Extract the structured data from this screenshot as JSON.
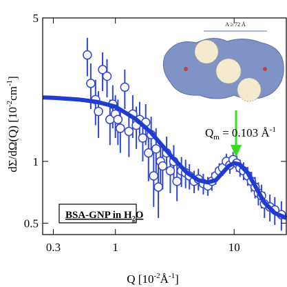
{
  "chart_data": {
    "type": "scatter",
    "xscale": "log",
    "yscale": "log",
    "xlim": [
      0.244,
      27.5
    ],
    "ylim": [
      0.44,
      5
    ],
    "xticks": [
      0.3,
      1,
      10
    ],
    "yticks": [
      5,
      1,
      0.5
    ],
    "xlabel": [
      "Q [10",
      "-2",
      "Å",
      "-1",
      "]"
    ],
    "ylabel": [
      "dΣ/dΩ(Q) [10",
      "-2",
      "cm",
      "-1",
      "]"
    ],
    "annotation": [
      "Q",
      "m",
      " = 0.103 Å",
      "-1"
    ],
    "sample_label": [
      "BSA-GNP in  H",
      "2",
      "O"
    ],
    "inset_label": "A ≥ 72 Å",
    "series": [
      {
        "type": "scatter",
        "color": "#2f45d6",
        "x": [
          0.58,
          0.62,
          0.68,
          0.72,
          0.78,
          0.85,
          0.9,
          0.95,
          1.0,
          1.05,
          1.1,
          1.2,
          1.3,
          1.4,
          1.5,
          1.6,
          1.7,
          1.8,
          1.9,
          2.0,
          2.1,
          2.2,
          2.3,
          2.4,
          2.5,
          2.7,
          2.9,
          3.1,
          3.3,
          3.6,
          3.9,
          4.2,
          4.6,
          5.0,
          5.5,
          6.0,
          6.5,
          7.0,
          7.5,
          8.0,
          8.6,
          9.2,
          9.8,
          10.5,
          11.2,
          12,
          13,
          14,
          15,
          16,
          17,
          18,
          20,
          22,
          25
        ],
        "y": [
          3.3,
          2.4,
          2.0,
          1.75,
          2.8,
          2.6,
          1.6,
          1.9,
          1.7,
          1.6,
          1.45,
          2.3,
          1.4,
          1.7,
          1.5,
          1.6,
          1.3,
          1.55,
          1.1,
          1.35,
          0.85,
          1.15,
          0.75,
          1.0,
          0.95,
          1.1,
          0.9,
          1.0,
          0.8,
          0.9,
          0.88,
          0.85,
          0.8,
          0.82,
          0.78,
          0.76,
          0.8,
          0.85,
          0.9,
          0.93,
          1.0,
          0.96,
          1.02,
          0.98,
          0.93,
          0.9,
          0.85,
          0.8,
          0.75,
          0.7,
          0.68,
          0.62,
          0.6,
          0.58,
          0.55
        ],
        "yerr": [
          0.7,
          0.6,
          0.5,
          0.45,
          0.6,
          0.55,
          0.4,
          0.45,
          0.4,
          0.4,
          0.35,
          0.5,
          0.35,
          0.4,
          0.35,
          0.35,
          0.3,
          0.35,
          0.3,
          0.3,
          0.25,
          0.3,
          0.22,
          0.25,
          0.22,
          0.22,
          0.2,
          0.2,
          0.16,
          0.15,
          0.14,
          0.12,
          0.1,
          0.1,
          0.09,
          0.08,
          0.08,
          0.08,
          0.08,
          0.08,
          0.09,
          0.09,
          0.09,
          0.09,
          0.09,
          0.09,
          0.09,
          0.09,
          0.09,
          0.09,
          0.09,
          0.09,
          0.09,
          0.09,
          0.09
        ]
      },
      {
        "type": "line",
        "color": "#1f3bd0",
        "x": [
          0.244,
          0.3,
          0.5,
          0.7,
          1.0,
          1.5,
          2,
          3,
          4,
          5,
          6,
          7,
          8,
          9,
          10,
          11,
          13,
          15,
          18,
          22,
          27.5
        ],
        "y": [
          2.05,
          2.04,
          2.0,
          1.95,
          1.85,
          1.6,
          1.38,
          1.05,
          0.88,
          0.81,
          0.79,
          0.81,
          0.88,
          0.95,
          0.98,
          0.97,
          0.88,
          0.76,
          0.63,
          0.56,
          0.53
        ]
      }
    ]
  }
}
